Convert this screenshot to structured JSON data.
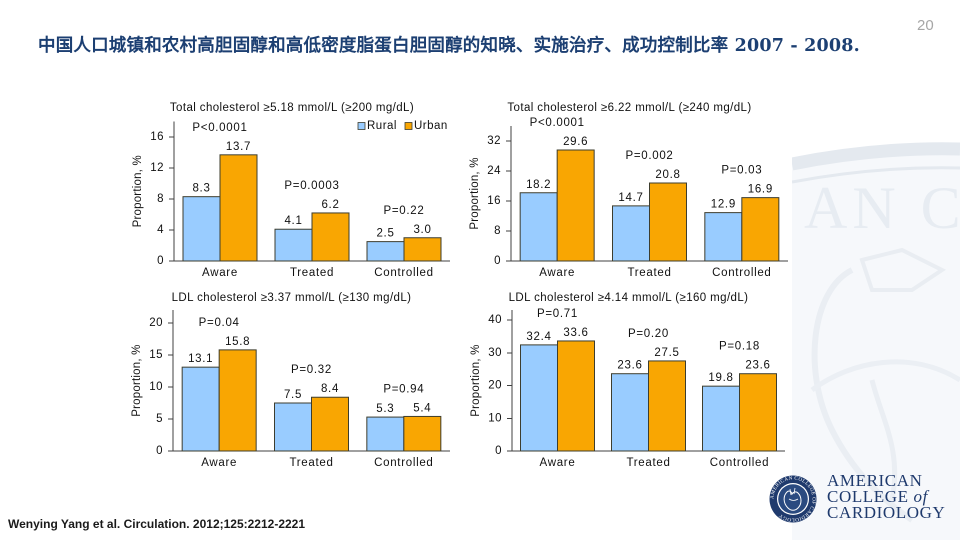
{
  "slide": {
    "title": "中国人口城镇和农村高胆固醇和高低密度脂蛋白胆固醇的知晓、实施治疗、成功控制比率 2007 - 2008.",
    "page_number": "20",
    "citation": "Wenying Yang et al. Circulation. 2012;125:2212-2221"
  },
  "logo": {
    "icon": "acc-seal-icon",
    "line1": "AMERICAN",
    "line2": "COLLEGE",
    "line2_suffix": "of",
    "line3": "CARDIOLOGY",
    "seal_text": "AMERICAN COLLEGE OF CARDIOLOGY"
  },
  "watermark": {
    "icon": "acc-seal-watermark-icon",
    "text": "AN C"
  },
  "colors": {
    "title": "#1c3f72",
    "rural": "#99CCFF",
    "urban": "#F9A602",
    "bar_border": "#3d3d2e",
    "axis": "#404040",
    "logo": "#1f3a6d",
    "watermark": "#e4e9ef",
    "page_number": "#a6a6a6"
  },
  "chart_data": [
    {
      "type": "bar",
      "title": "Total cholesterol ≥5.18 mmol/L (≥200 mg/dL)",
      "xlabel": "",
      "ylabel": "Proportion, %",
      "categories": [
        "Aware",
        "Treated",
        "Controlled"
      ],
      "series": [
        {
          "name": "Rural",
          "values": [
            8.3,
            4.1,
            2.5
          ],
          "labels": [
            "8.3",
            "4.1",
            "2.5"
          ]
        },
        {
          "name": "Urban",
          "values": [
            13.7,
            6.2,
            3.0
          ],
          "labels": [
            "13.7",
            "6.2",
            "3.0"
          ]
        }
      ],
      "p_values": [
        "P<0.0001",
        "P=0.0003",
        "P=0.22"
      ],
      "yticks": [
        0,
        4,
        8,
        12,
        16
      ],
      "ylim": [
        0,
        18
      ],
      "grid": false,
      "legend": "top-right"
    },
    {
      "type": "bar",
      "title": "Total cholesterol ≥6.22 mmol/L (≥240 mg/dL)",
      "xlabel": "",
      "ylabel": "Proportion, %",
      "categories": [
        "Aware",
        "Treated",
        "Controlled"
      ],
      "series": [
        {
          "name": "Rural",
          "values": [
            18.2,
            14.7,
            12.9
          ],
          "labels": [
            "18.2",
            "14.7",
            "12.9"
          ]
        },
        {
          "name": "Urban",
          "values": [
            29.6,
            20.8,
            16.9
          ],
          "labels": [
            "29.6",
            "20.8",
            "16.9"
          ]
        }
      ],
      "p_values": [
        "P<0.0001",
        "P=0.002",
        "P=0.03"
      ],
      "yticks": [
        0,
        8,
        16,
        24,
        32
      ],
      "ylim": [
        0,
        36
      ],
      "grid": false,
      "legend": "none"
    },
    {
      "type": "bar",
      "title": "LDL cholesterol ≥3.37 mmol/L (≥130 mg/dL)",
      "xlabel": "",
      "ylabel": "Proportion, %",
      "categories": [
        "Aware",
        "Treated",
        "Controlled"
      ],
      "series": [
        {
          "name": "Rural",
          "values": [
            13.1,
            7.5,
            5.3
          ],
          "labels": [
            "13.1",
            "7.5",
            "5.3"
          ]
        },
        {
          "name": "Urban",
          "values": [
            15.8,
            8.4,
            5.4
          ],
          "labels": [
            "15.8",
            "8.4",
            "5.4"
          ]
        }
      ],
      "p_values": [
        "P=0.04",
        "P=0.32",
        "P=0.94"
      ],
      "yticks": [
        0,
        5,
        10,
        15,
        20
      ],
      "ylim": [
        0,
        22
      ],
      "grid": false,
      "legend": "none"
    },
    {
      "type": "bar",
      "title": "LDL cholesterol ≥4.14 mmol/L (≥160 mg/dL)",
      "xlabel": "",
      "ylabel": "Proportion, %",
      "categories": [
        "Aware",
        "Treated",
        "Controlled"
      ],
      "series": [
        {
          "name": "Rural",
          "values": [
            32.4,
            23.6,
            19.8
          ],
          "labels": [
            "32.4",
            "23.6",
            "19.8"
          ]
        },
        {
          "name": "Urban",
          "values": [
            33.6,
            27.5,
            23.6
          ],
          "labels": [
            "33.6",
            "27.5",
            "23.6"
          ]
        }
      ],
      "p_values": [
        "P=0.71",
        "P=0.20",
        "P=0.18"
      ],
      "yticks": [
        0,
        10,
        20,
        30,
        40
      ],
      "ylim": [
        0,
        43
      ],
      "grid": false,
      "legend": "none"
    }
  ]
}
